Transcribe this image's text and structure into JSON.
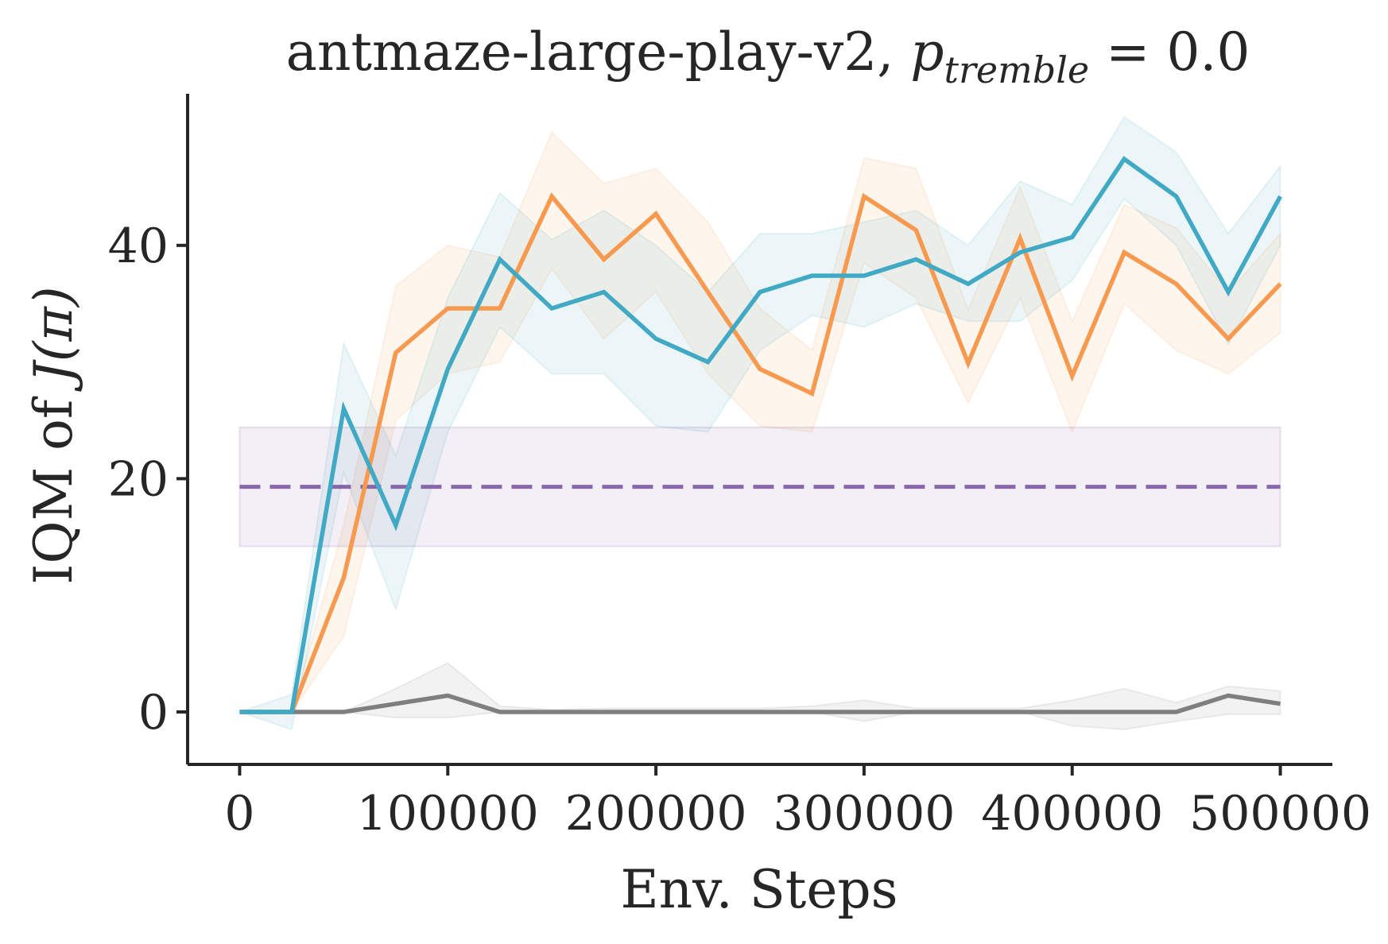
{
  "chart_data": {
    "type": "line",
    "title": "antmaze-large-play-v2, ",
    "title_math_symbol": "p",
    "title_math_subscript": "tremble",
    "title_math_rest": " = 0.0",
    "xlabel": "Env. Steps",
    "ylabel": "IQM of ",
    "ylabel_math": "J(π)",
    "xlim": [
      -25000,
      525000
    ],
    "ylim": [
      -4.5,
      53
    ],
    "xticks": [
      0,
      100000,
      200000,
      300000,
      400000,
      500000
    ],
    "xtick_labels": [
      "0",
      "100000",
      "200000",
      "300000",
      "400000",
      "500000"
    ],
    "yticks": [
      0,
      20,
      40
    ],
    "ytick_labels": [
      "0",
      "20",
      "40"
    ],
    "grid": false,
    "legend": "none",
    "x": [
      0,
      25000,
      50000,
      75000,
      100000,
      125000,
      150000,
      175000,
      200000,
      225000,
      250000,
      275000,
      300000,
      325000,
      350000,
      375000,
      400000,
      425000,
      450000,
      475000,
      500000
    ],
    "series": [
      {
        "color": "#f7994f",
        "values": [
          0,
          0,
          11.5,
          30.8,
          34.6,
          34.6,
          44.2,
          38.8,
          42.7,
          36.0,
          29.4,
          27.3,
          44.2,
          41.3,
          29.9,
          40.6,
          28.8,
          39.4,
          36.7,
          32.0,
          36.7
        ],
        "lower": [
          0,
          0,
          6.5,
          25.0,
          29.0,
          30.0,
          38.0,
          32.0,
          36.0,
          29.0,
          24.5,
          24.0,
          38.5,
          35.5,
          26.5,
          35.5,
          24.0,
          35.0,
          31.0,
          29.0,
          32.5
        ],
        "upper": [
          0,
          0,
          16.0,
          36.5,
          40.0,
          39.0,
          49.7,
          45.3,
          46.6,
          42.0,
          34.6,
          31.0,
          47.5,
          46.6,
          34.5,
          45.0,
          33.5,
          43.5,
          41.5,
          36.0,
          41.0
        ]
      },
      {
        "color": "#42a9c5",
        "values": [
          0,
          0,
          26.0,
          16.0,
          29.4,
          38.8,
          34.6,
          36.0,
          32.0,
          30.0,
          36.0,
          37.4,
          37.4,
          38.8,
          36.7,
          39.4,
          40.7,
          47.4,
          44.2,
          36.0,
          44.2
        ],
        "lower": [
          0,
          -1.5,
          20.5,
          8.8,
          24.0,
          33.0,
          29.0,
          29.0,
          24.5,
          24.0,
          31.0,
          34.0,
          33.0,
          35.0,
          33.5,
          33.5,
          37.0,
          44.0,
          40.0,
          31.5,
          40.0
        ],
        "upper": [
          0,
          1.5,
          31.6,
          22.0,
          35.5,
          44.5,
          40.5,
          43.0,
          40.0,
          36.0,
          41.0,
          41.0,
          42.0,
          43.0,
          40.0,
          45.5,
          43.5,
          51.0,
          48.0,
          41.0,
          46.8
        ]
      },
      {
        "color": "#7f7f7f",
        "values": [
          0,
          0,
          0,
          0.7,
          1.4,
          0,
          0,
          0,
          0,
          0,
          0,
          0,
          0,
          0,
          0,
          0,
          0,
          0,
          0,
          1.4,
          0.7
        ],
        "lower": [
          0,
          0,
          0,
          -0.5,
          -0.5,
          0,
          0,
          0,
          0,
          0,
          0,
          0,
          -0.8,
          0,
          0,
          0,
          -1.2,
          -1.5,
          -0.8,
          -0.2,
          -0.2
        ],
        "upper": [
          0,
          0,
          0,
          2.0,
          4.2,
          0.5,
          0.2,
          0.3,
          0.3,
          0.3,
          0.3,
          0.5,
          1.0,
          0.3,
          0.3,
          0.3,
          1.0,
          2.0,
          0.8,
          2.2,
          1.8
        ]
      }
    ],
    "baseline": {
      "color": "#8866aa",
      "value": 19.3,
      "lower": 14.2,
      "upper": 24.4,
      "x_range": [
        0,
        500000
      ],
      "style": "dashed"
    }
  }
}
